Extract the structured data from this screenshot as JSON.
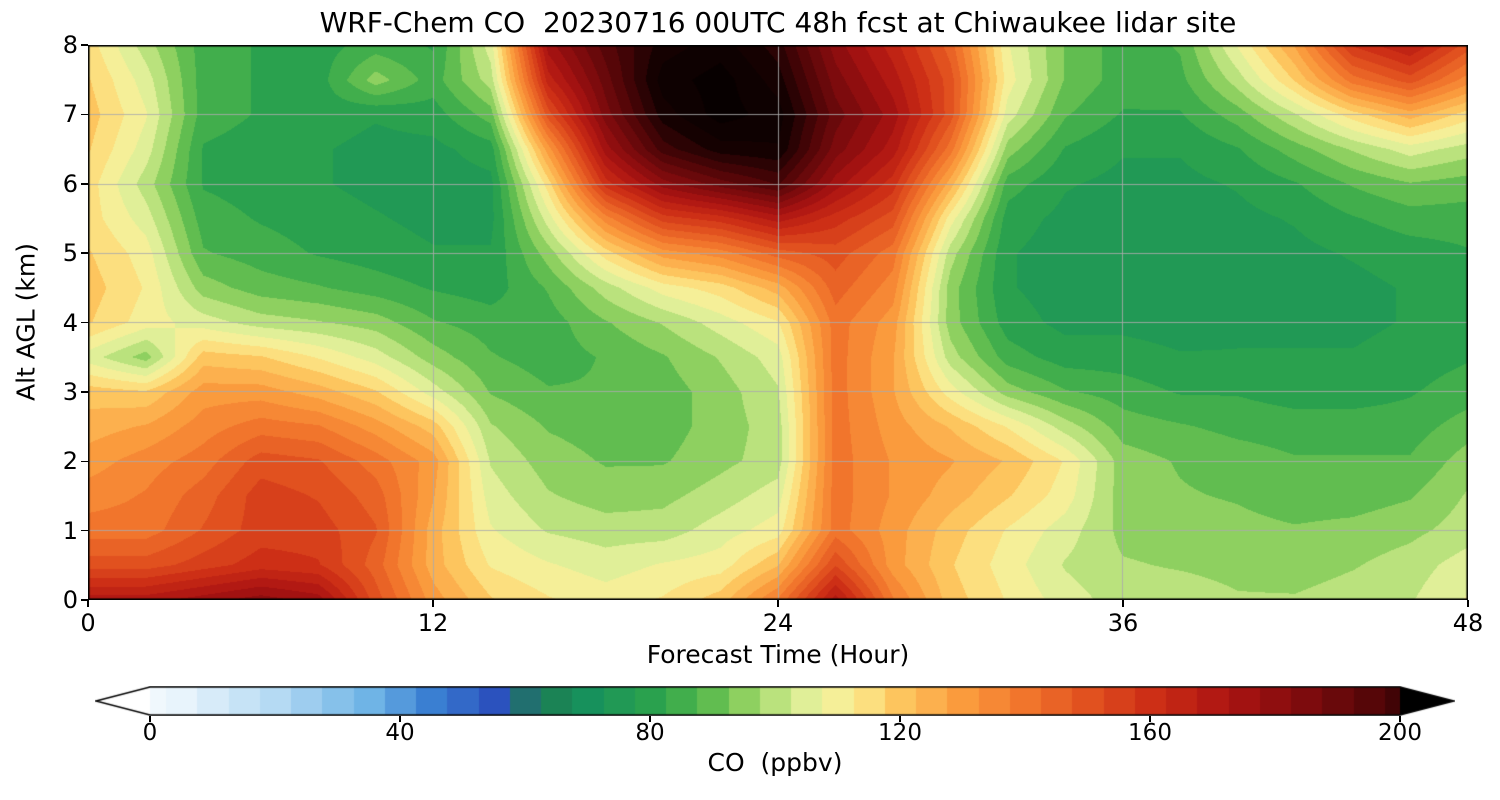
{
  "chart_data": {
    "type": "heatmap",
    "title": "WRF-Chem CO  20230716 00UTC 48h fcst at Chiwaukee lidar site",
    "xlabel": "Forecast Time (Hour)",
    "ylabel": "Alt AGL (km)",
    "xlim": [
      0,
      48
    ],
    "ylim": [
      0,
      8
    ],
    "xticks": [
      0,
      12,
      24,
      36,
      48
    ],
    "yticks": [
      0,
      1,
      2,
      3,
      4,
      5,
      6,
      7,
      8
    ],
    "grid_x": [
      12,
      24,
      36
    ],
    "grid_y": [
      1,
      2,
      3,
      4,
      5,
      6,
      7
    ],
    "grid_color": "#aaaaaa",
    "level_step": 5,
    "x": [
      0,
      2,
      4,
      6,
      8,
      10,
      12,
      14,
      16,
      18,
      20,
      22,
      24,
      26,
      28,
      30,
      32,
      34,
      36,
      38,
      40,
      42,
      44,
      46,
      48
    ],
    "y": [
      0,
      0.5,
      1,
      1.5,
      2,
      2.5,
      3,
      3.5,
      4,
      4.5,
      5,
      5.5,
      6,
      6.5,
      7,
      7.5,
      8
    ],
    "values": [
      [
        170,
        170,
        175,
        180,
        175,
        150,
        130,
        118,
        113,
        110,
        113,
        120,
        138,
        170,
        138,
        120,
        112,
        105,
        100,
        100,
        98,
        98,
        100,
        102,
        108
      ],
      [
        150,
        150,
        155,
        160,
        158,
        145,
        125,
        112,
        108,
        105,
        108,
        110,
        122,
        152,
        130,
        118,
        110,
        102,
        98,
        97,
        96,
        95,
        97,
        100,
        105
      ],
      [
        140,
        140,
        148,
        155,
        155,
        148,
        125,
        108,
        102,
        100,
        100,
        105,
        110,
        140,
        130,
        120,
        112,
        105,
        96,
        95,
        94,
        93,
        94,
        96,
        100
      ],
      [
        135,
        138,
        145,
        155,
        152,
        145,
        128,
        105,
        98,
        95,
        96,
        100,
        105,
        140,
        132,
        125,
        118,
        110,
        95,
        93,
        92,
        90,
        90,
        92,
        98
      ],
      [
        130,
        135,
        140,
        150,
        148,
        140,
        130,
        102,
        95,
        92,
        92,
        96,
        100,
        140,
        132,
        128,
        122,
        112,
        95,
        92,
        90,
        88,
        88,
        88,
        95
      ],
      [
        125,
        128,
        135,
        140,
        138,
        130,
        120,
        98,
        92,
        90,
        90,
        95,
        100,
        140,
        130,
        122,
        112,
        100,
        90,
        88,
        86,
        85,
        85,
        85,
        90
      ],
      [
        120,
        118,
        130,
        130,
        125,
        118,
        105,
        92,
        88,
        88,
        90,
        95,
        102,
        140,
        128,
        110,
        95,
        88,
        85,
        82,
        82,
        80,
        80,
        82,
        85
      ],
      [
        105,
        95,
        120,
        118,
        112,
        105,
        95,
        88,
        85,
        88,
        92,
        98,
        105,
        140,
        128,
        100,
        85,
        80,
        80,
        78,
        78,
        78,
        78,
        80,
        82
      ],
      [
        118,
        110,
        105,
        100,
        98,
        95,
        88,
        85,
        85,
        92,
        98,
        105,
        112,
        140,
        130,
        95,
        80,
        76,
        76,
        75,
        76,
        76,
        76,
        78,
        80
      ],
      [
        120,
        112,
        95,
        90,
        88,
        85,
        82,
        80,
        88,
        100,
        110,
        115,
        125,
        145,
        135,
        95,
        78,
        75,
        74,
        74,
        75,
        75,
        76,
        78,
        80
      ],
      [
        118,
        110,
        88,
        85,
        82,
        80,
        78,
        78,
        95,
        115,
        130,
        135,
        145,
        150,
        140,
        100,
        78,
        75,
        74,
        74,
        75,
        76,
        78,
        80,
        82
      ],
      [
        115,
        105,
        85,
        82,
        80,
        78,
        76,
        76,
        105,
        135,
        155,
        160,
        170,
        160,
        150,
        110,
        80,
        76,
        75,
        75,
        76,
        78,
        82,
        85,
        85
      ],
      [
        115,
        100,
        82,
        80,
        78,
        76,
        75,
        76,
        115,
        160,
        180,
        190,
        198,
        175,
        160,
        125,
        85,
        78,
        76,
        76,
        78,
        82,
        88,
        92,
        90
      ],
      [
        118,
        105,
        82,
        80,
        78,
        76,
        76,
        80,
        130,
        175,
        200,
        210,
        212,
        185,
        170,
        140,
        95,
        82,
        78,
        78,
        82,
        90,
        98,
        105,
        100
      ],
      [
        120,
        108,
        85,
        82,
        80,
        78,
        80,
        90,
        150,
        185,
        210,
        220,
        215,
        190,
        175,
        150,
        105,
        88,
        82,
        82,
        90,
        102,
        115,
        125,
        115
      ],
      [
        118,
        105,
        85,
        82,
        80,
        95,
        85,
        100,
        165,
        190,
        215,
        220,
        210,
        185,
        170,
        150,
        110,
        92,
        85,
        86,
        100,
        118,
        140,
        150,
        135
      ],
      [
        115,
        100,
        85,
        82,
        80,
        85,
        82,
        105,
        175,
        195,
        210,
        215,
        205,
        180,
        165,
        145,
        108,
        92,
        85,
        88,
        108,
        128,
        158,
        168,
        150
      ]
    ],
    "colormap": [
      {
        "v": -10,
        "c": "#ffffff"
      },
      {
        "v": 5,
        "c": "#e8f4fc"
      },
      {
        "v": 20,
        "c": "#b5daf3"
      },
      {
        "v": 35,
        "c": "#6fb4e6"
      },
      {
        "v": 45,
        "c": "#3a7fd2"
      },
      {
        "v": 55,
        "c": "#2b52be"
      },
      {
        "v": 62,
        "c": "#1d7a50"
      },
      {
        "v": 70,
        "c": "#17915c"
      },
      {
        "v": 80,
        "c": "#2aa14e"
      },
      {
        "v": 88,
        "c": "#4fb54a"
      },
      {
        "v": 95,
        "c": "#8ed060"
      },
      {
        "v": 101,
        "c": "#c3e683"
      },
      {
        "v": 107,
        "c": "#eef4a3"
      },
      {
        "v": 113,
        "c": "#fce98c"
      },
      {
        "v": 120,
        "c": "#fdc55e"
      },
      {
        "v": 130,
        "c": "#fa9b3d"
      },
      {
        "v": 140,
        "c": "#f1752c"
      },
      {
        "v": 150,
        "c": "#e1511f"
      },
      {
        "v": 160,
        "c": "#cd2f16"
      },
      {
        "v": 172,
        "c": "#ad1412"
      },
      {
        "v": 185,
        "c": "#7d0b0d"
      },
      {
        "v": 198,
        "c": "#4a0507"
      },
      {
        "v": 210,
        "c": "#150101"
      },
      {
        "v": 225,
        "c": "#000000"
      }
    ],
    "colorbar": {
      "label": "CO  (ppbv)",
      "ticks": [
        0,
        40,
        80,
        120,
        160,
        200
      ],
      "range": [
        0,
        200
      ],
      "extend": "both"
    }
  }
}
